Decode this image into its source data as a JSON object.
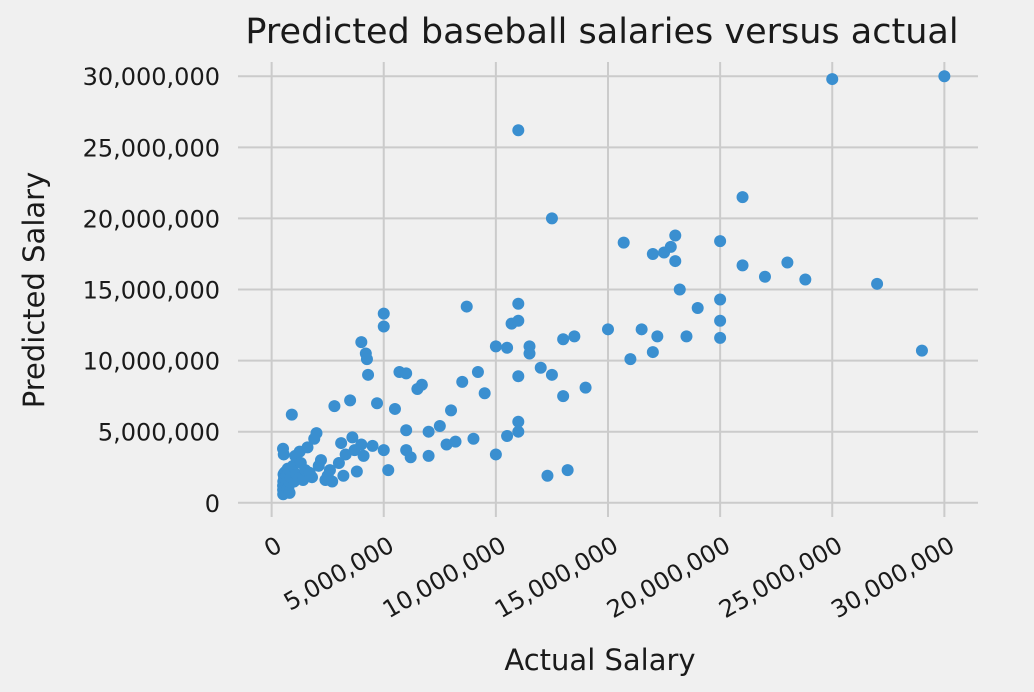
{
  "chart_data": {
    "type": "scatter",
    "title": "Predicted baseball salaries versus actual",
    "xlabel": "Actual Salary",
    "ylabel": "Predicted Salary",
    "xlim": [
      -1500000,
      31500000
    ],
    "ylim": [
      -1000000,
      31000000
    ],
    "xticks": [
      0,
      5000000,
      10000000,
      15000000,
      20000000,
      25000000,
      30000000
    ],
    "xtick_labels": [
      "0",
      "5,000,000",
      "10,000,000",
      "15,000,000",
      "20,000,000",
      "25,000,000",
      "30,000,000"
    ],
    "yticks": [
      0,
      5000000,
      10000000,
      15000000,
      20000000,
      25000000,
      30000000
    ],
    "ytick_labels": [
      "0",
      "5,000,000",
      "10,000,000",
      "15,000,000",
      "20,000,000",
      "25,000,000",
      "30,000,000"
    ],
    "grid": true,
    "color": "#3a8fd0",
    "series": [
      {
        "x": [
          507500,
          510000,
          512000,
          515000,
          520000,
          525000,
          530000,
          535000,
          540000,
          545000,
          550000,
          555000,
          560000,
          570000,
          575000,
          580000,
          590000,
          600000,
          615000,
          630000,
          650000,
          670000,
          700000,
          720000,
          750000,
          780000,
          800000,
          850000,
          900000,
          950000,
          1000000,
          1050000,
          1100000,
          1200000,
          1250000,
          1300000,
          1400000,
          1500000,
          1600000,
          1700000,
          1800000,
          1900000,
          2000000,
          2100000,
          2200000,
          2400000,
          2500000,
          2600000,
          2700000,
          2800000,
          3000000,
          3100000,
          3200000,
          3300000,
          3500000,
          3600000,
          3700000,
          3800000,
          4000000,
          4000000,
          4100000,
          4200000,
          4250000,
          4300000,
          4500000,
          4700000,
          5000000,
          5000000,
          5000000,
          5200000,
          5500000,
          5700000,
          6000000,
          6000000,
          6000000,
          6200000,
          6500000,
          6700000,
          7000000,
          7000000,
          7500000,
          7800000,
          8000000,
          8200000,
          8500000,
          8700000,
          9000000,
          9200000,
          9500000,
          10000000,
          10000000,
          10500000,
          10500000,
          10700000,
          11000000,
          11000000,
          11000000,
          11000000,
          11000000,
          11000000,
          11500000,
          11500000,
          12000000,
          12300000,
          12500000,
          12500000,
          13000000,
          13000000,
          13200000,
          13500000,
          14000000,
          15000000,
          15700000,
          16000000,
          16500000,
          17000000,
          17000000,
          17200000,
          17500000,
          17800000,
          18000000,
          18000000,
          18200000,
          18500000,
          19000000,
          20000000,
          20000000,
          20000000,
          20000000,
          21000000,
          21000000,
          22000000,
          23000000,
          23800000,
          25000000,
          27000000,
          29000000,
          30000000
        ],
        "y": [
          3800000,
          1200000,
          900000,
          600000,
          1500000,
          1000000,
          2000000,
          800000,
          3400000,
          700000,
          1300000,
          1800000,
          1100000,
          2100000,
          950000,
          1600000,
          1400000,
          700000,
          1700000,
          2200000,
          1300000,
          1900000,
          1000000,
          2400000,
          1100000,
          1500000,
          700000,
          1800000,
          6200000,
          2600000,
          1500000,
          3300000,
          2000000,
          1700000,
          3600000,
          2800000,
          1600000,
          2300000,
          3900000,
          2100000,
          1800000,
          4500000,
          4900000,
          2600000,
          3000000,
          1600000,
          1900000,
          2300000,
          1500000,
          6800000,
          2800000,
          4200000,
          1900000,
          3400000,
          7200000,
          4600000,
          3700000,
          2200000,
          11300000,
          4100000,
          3300000,
          10500000,
          10100000,
          9000000,
          4000000,
          7000000,
          3700000,
          13300000,
          12400000,
          2300000,
          6600000,
          9200000,
          3700000,
          5100000,
          9100000,
          3200000,
          8000000,
          8300000,
          5000000,
          3300000,
          5400000,
          4100000,
          6500000,
          4300000,
          8500000,
          13800000,
          4500000,
          9200000,
          7700000,
          11000000,
          3400000,
          4700000,
          10900000,
          12600000,
          12800000,
          8900000,
          14000000,
          5700000,
          26200000,
          5000000,
          11000000,
          10500000,
          9500000,
          1900000,
          9000000,
          20000000,
          11500000,
          7500000,
          2300000,
          11700000,
          8100000,
          12200000,
          18300000,
          10100000,
          12200000,
          10600000,
          17500000,
          11700000,
          17600000,
          18000000,
          18800000,
          17000000,
          15000000,
          11700000,
          13700000,
          18400000,
          14300000,
          12800000,
          11600000,
          16700000,
          21500000,
          15900000,
          16900000,
          15700000,
          29800000,
          15400000,
          10700000,
          30000000
        ]
      }
    ]
  }
}
